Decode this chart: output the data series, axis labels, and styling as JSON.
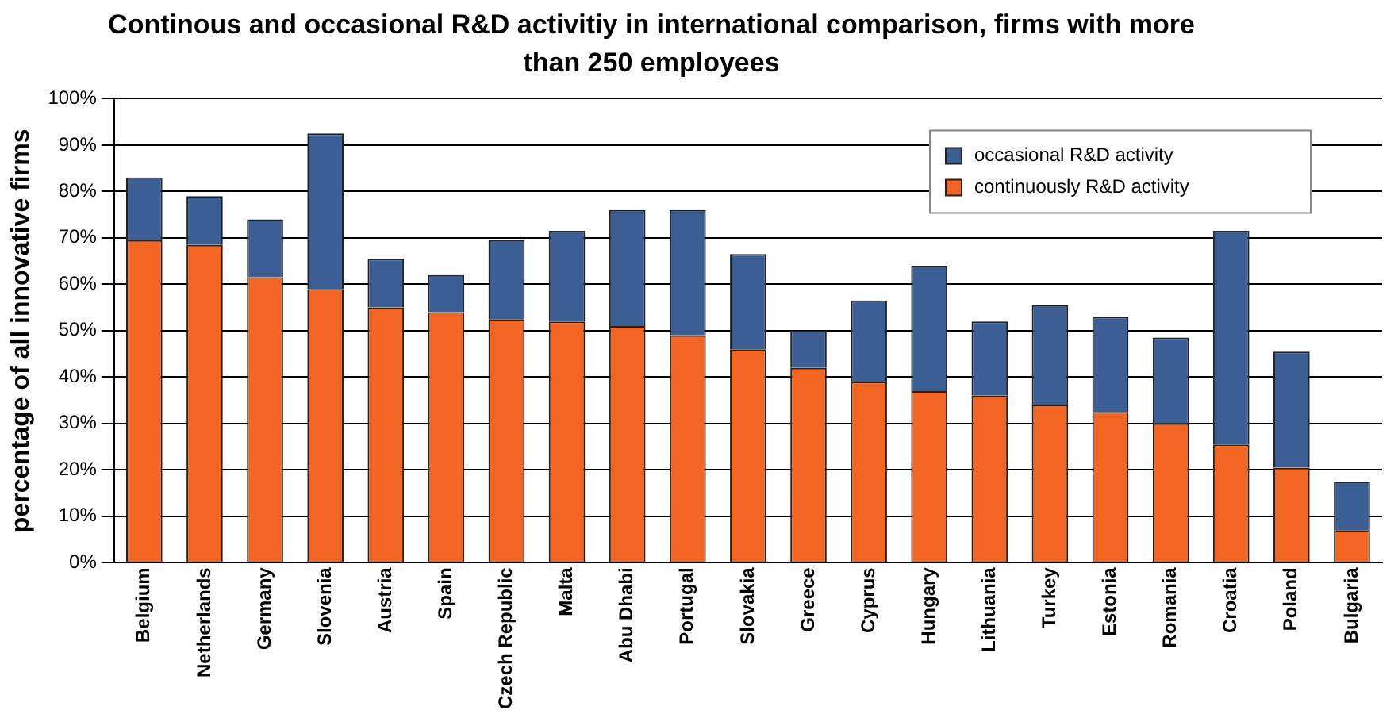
{
  "chart_data": {
    "type": "bar",
    "title": "Continous and occasional R&D activitiy in international comparison, firms with more than 250 employees",
    "ylabel": "percentage of all innovative firms",
    "categories": [
      "Belgium",
      "Netherlands",
      "Germany",
      "Slovenia",
      "Austria",
      "Spain",
      "Czech Republic",
      "Malta",
      "Abu Dhabi",
      "Portugal",
      "Slovakia",
      "Greece",
      "Cyprus",
      "Hungary",
      "Lithuania",
      "Turkey",
      "Estonia",
      "Romania",
      "Croatia",
      "Poland",
      "Bulgaria"
    ],
    "stacked": true,
    "series": [
      {
        "name": "continuously R&D activity",
        "color": "#f26522",
        "values": [
          69.5,
          68.5,
          61.5,
          59,
          55,
          54,
          52.5,
          52,
          51,
          49,
          46,
          42,
          39,
          37,
          36,
          34,
          32.5,
          30,
          25.5,
          20.5,
          7
        ]
      },
      {
        "name": "occasional R&D activity",
        "color": "#3b5e94",
        "values": [
          13.5,
          10.5,
          12.5,
          33.5,
          10.5,
          8,
          17,
          19.5,
          25,
          27,
          20.5,
          8,
          17.5,
          27,
          16,
          21.5,
          20.5,
          18.5,
          46,
          25,
          10.5
        ]
      }
    ],
    "ylim": [
      0,
      100
    ],
    "yticks": [
      {
        "value": 0,
        "label": "0%"
      },
      {
        "value": 10,
        "label": "10%"
      },
      {
        "value": 20,
        "label": "20%"
      },
      {
        "value": 30,
        "label": "30%"
      },
      {
        "value": 40,
        "label": "40%"
      },
      {
        "value": 50,
        "label": "50%"
      },
      {
        "value": 60,
        "label": "60%"
      },
      {
        "value": 70,
        "label": "70%"
      },
      {
        "value": 80,
        "label": "80%"
      },
      {
        "value": 90,
        "label": "90%"
      },
      {
        "value": 100,
        "label": "100%"
      }
    ],
    "grid": "y",
    "legend": "top right"
  }
}
